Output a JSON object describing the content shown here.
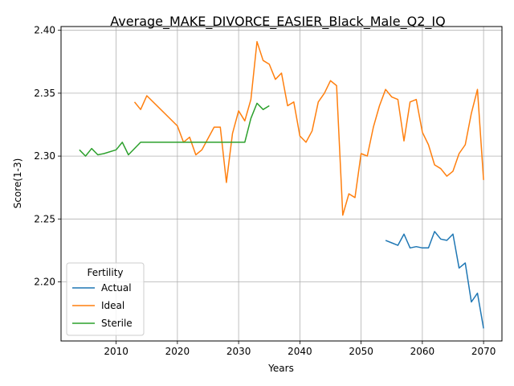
{
  "chart_data": {
    "type": "line",
    "title": "Average_MAKE_DIVORCE_EASIER_Black_Male_Q2_IQ",
    "xlabel": "Years",
    "ylabel": "Score(1-3)",
    "xlim": [
      2001,
      2073
    ],
    "ylim": [
      2.153,
      2.403
    ],
    "x_ticks": [
      2010,
      2020,
      2030,
      2040,
      2050,
      2060,
      2070
    ],
    "y_ticks": [
      2.2,
      2.25,
      2.3,
      2.35,
      2.4
    ],
    "x_tick_labels": [
      "2010",
      "2020",
      "2030",
      "2040",
      "2050",
      "2060",
      "2070"
    ],
    "y_tick_labels": [
      "2.20",
      "2.25",
      "2.30",
      "2.35",
      "2.40"
    ],
    "grid": true,
    "legend": {
      "title": "Fertility",
      "placement": "lower-left"
    },
    "series": [
      {
        "name": "Actual",
        "color": "#1f77b4",
        "points": [
          [
            2054,
            2.233
          ],
          [
            2055,
            2.231
          ],
          [
            2056,
            2.229
          ],
          [
            2057,
            2.238
          ],
          [
            2058,
            2.227
          ],
          [
            2059,
            2.228
          ],
          [
            2060,
            2.227
          ],
          [
            2061,
            2.227
          ],
          [
            2062,
            2.24
          ],
          [
            2063,
            2.234
          ],
          [
            2064,
            2.233
          ],
          [
            2065,
            2.238
          ],
          [
            2066,
            2.211
          ],
          [
            2067,
            2.215
          ],
          [
            2068,
            2.184
          ],
          [
            2069,
            2.191
          ],
          [
            2070,
            2.163
          ]
        ]
      },
      {
        "name": "Ideal",
        "color": "#ff7f0e",
        "points": [
          [
            2013,
            2.343
          ],
          [
            2014,
            2.337
          ],
          [
            2015,
            2.348
          ],
          [
            2020,
            2.324
          ],
          [
            2021,
            2.311
          ],
          [
            2022,
            2.315
          ],
          [
            2023,
            2.301
          ],
          [
            2024,
            2.305
          ],
          [
            2026,
            2.323
          ],
          [
            2027,
            2.323
          ],
          [
            2028,
            2.279
          ],
          [
            2029,
            2.318
          ],
          [
            2030,
            2.336
          ],
          [
            2031,
            2.328
          ],
          [
            2032,
            2.345
          ],
          [
            2033,
            2.391
          ],
          [
            2034,
            2.376
          ],
          [
            2035,
            2.373
          ],
          [
            2036,
            2.361
          ],
          [
            2037,
            2.366
          ],
          [
            2038,
            2.34
          ],
          [
            2039,
            2.343
          ],
          [
            2040,
            2.316
          ],
          [
            2041,
            2.311
          ],
          [
            2042,
            2.32
          ],
          [
            2043,
            2.343
          ],
          [
            2044,
            2.35
          ],
          [
            2045,
            2.36
          ],
          [
            2046,
            2.356
          ],
          [
            2047,
            2.253
          ],
          [
            2048,
            2.27
          ],
          [
            2049,
            2.267
          ],
          [
            2050,
            2.302
          ],
          [
            2051,
            2.3
          ],
          [
            2052,
            2.323
          ],
          [
            2053,
            2.34
          ],
          [
            2054,
            2.353
          ],
          [
            2055,
            2.347
          ],
          [
            2056,
            2.345
          ],
          [
            2057,
            2.312
          ],
          [
            2058,
            2.343
          ],
          [
            2059,
            2.345
          ],
          [
            2060,
            2.319
          ],
          [
            2061,
            2.309
          ],
          [
            2062,
            2.293
          ],
          [
            2063,
            2.29
          ],
          [
            2064,
            2.284
          ],
          [
            2065,
            2.288
          ],
          [
            2066,
            2.302
          ],
          [
            2067,
            2.309
          ],
          [
            2068,
            2.334
          ],
          [
            2069,
            2.353
          ],
          [
            2070,
            2.281
          ]
        ]
      },
      {
        "name": "Sterile",
        "color": "#2ca02c",
        "points": [
          [
            2004,
            2.305
          ],
          [
            2005,
            2.3
          ],
          [
            2006,
            2.306
          ],
          [
            2007,
            2.301
          ],
          [
            2008,
            2.302
          ],
          [
            2010,
            2.305
          ],
          [
            2011,
            2.311
          ],
          [
            2012,
            2.301
          ],
          [
            2014,
            2.311
          ],
          [
            2031,
            2.311
          ],
          [
            2032,
            2.33
          ],
          [
            2033,
            2.342
          ],
          [
            2034,
            2.337
          ],
          [
            2035,
            2.34
          ]
        ]
      }
    ]
  }
}
